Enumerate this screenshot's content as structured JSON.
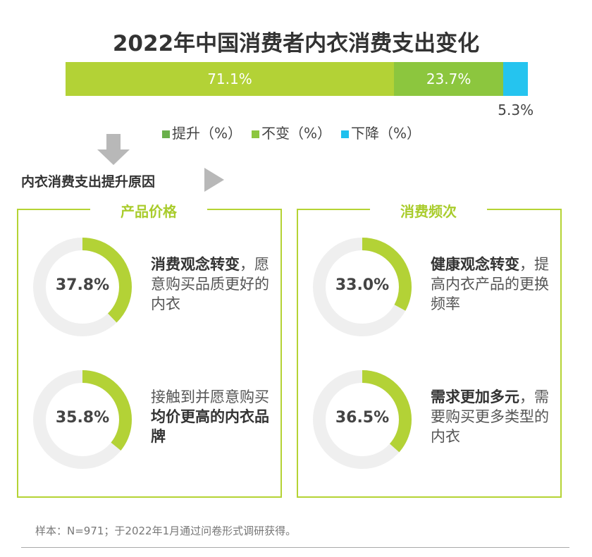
{
  "chart_data": [
    {
      "type": "bar",
      "orientation": "horizontal-stacked",
      "title": "2022年中国消费者内衣消费支出变化",
      "series": [
        {
          "name": "提升（%）",
          "value": 71.1,
          "label": "71.1%",
          "color": "#b3d236",
          "legend_color": "#6ab04c"
        },
        {
          "name": "不变（%）",
          "value": 23.7,
          "label": "23.7%",
          "color": "#8cc63e",
          "legend_color": "#8dc63f"
        },
        {
          "name": "下降（%）",
          "value": 5.3,
          "label": "5.3%",
          "color": "#25c4ef",
          "legend_color": "#1fc0ee"
        }
      ],
      "legend": "bottom"
    },
    {
      "type": "pie",
      "subtype": "donut",
      "title": "产品价格",
      "items": [
        {
          "value": 37.8,
          "label": "37.8%",
          "bold": "消费观念转变",
          "text": "，愿意购买品质更好的内衣"
        },
        {
          "value": 35.8,
          "label": "35.8%",
          "pre": "接触到并愿意购买",
          "bold": "均价更高的内衣品牌"
        }
      ]
    },
    {
      "type": "pie",
      "subtype": "donut",
      "title": "消费频次",
      "items": [
        {
          "value": 33.0,
          "label": "33.0%",
          "bold": "健康观念转变",
          "text": "，提高内衣产品的更换频率"
        },
        {
          "value": 36.5,
          "label": "36.5%",
          "bold": "需求更加多元",
          "text": "，需要购买更多类型的内衣"
        }
      ]
    }
  ],
  "section_label": "内衣消费支出提升原因",
  "note": "样本：N=971；于2022年1月通过问卷形式调研获得。",
  "colors": {
    "ring": "#b3d236",
    "track": "#efefef"
  }
}
